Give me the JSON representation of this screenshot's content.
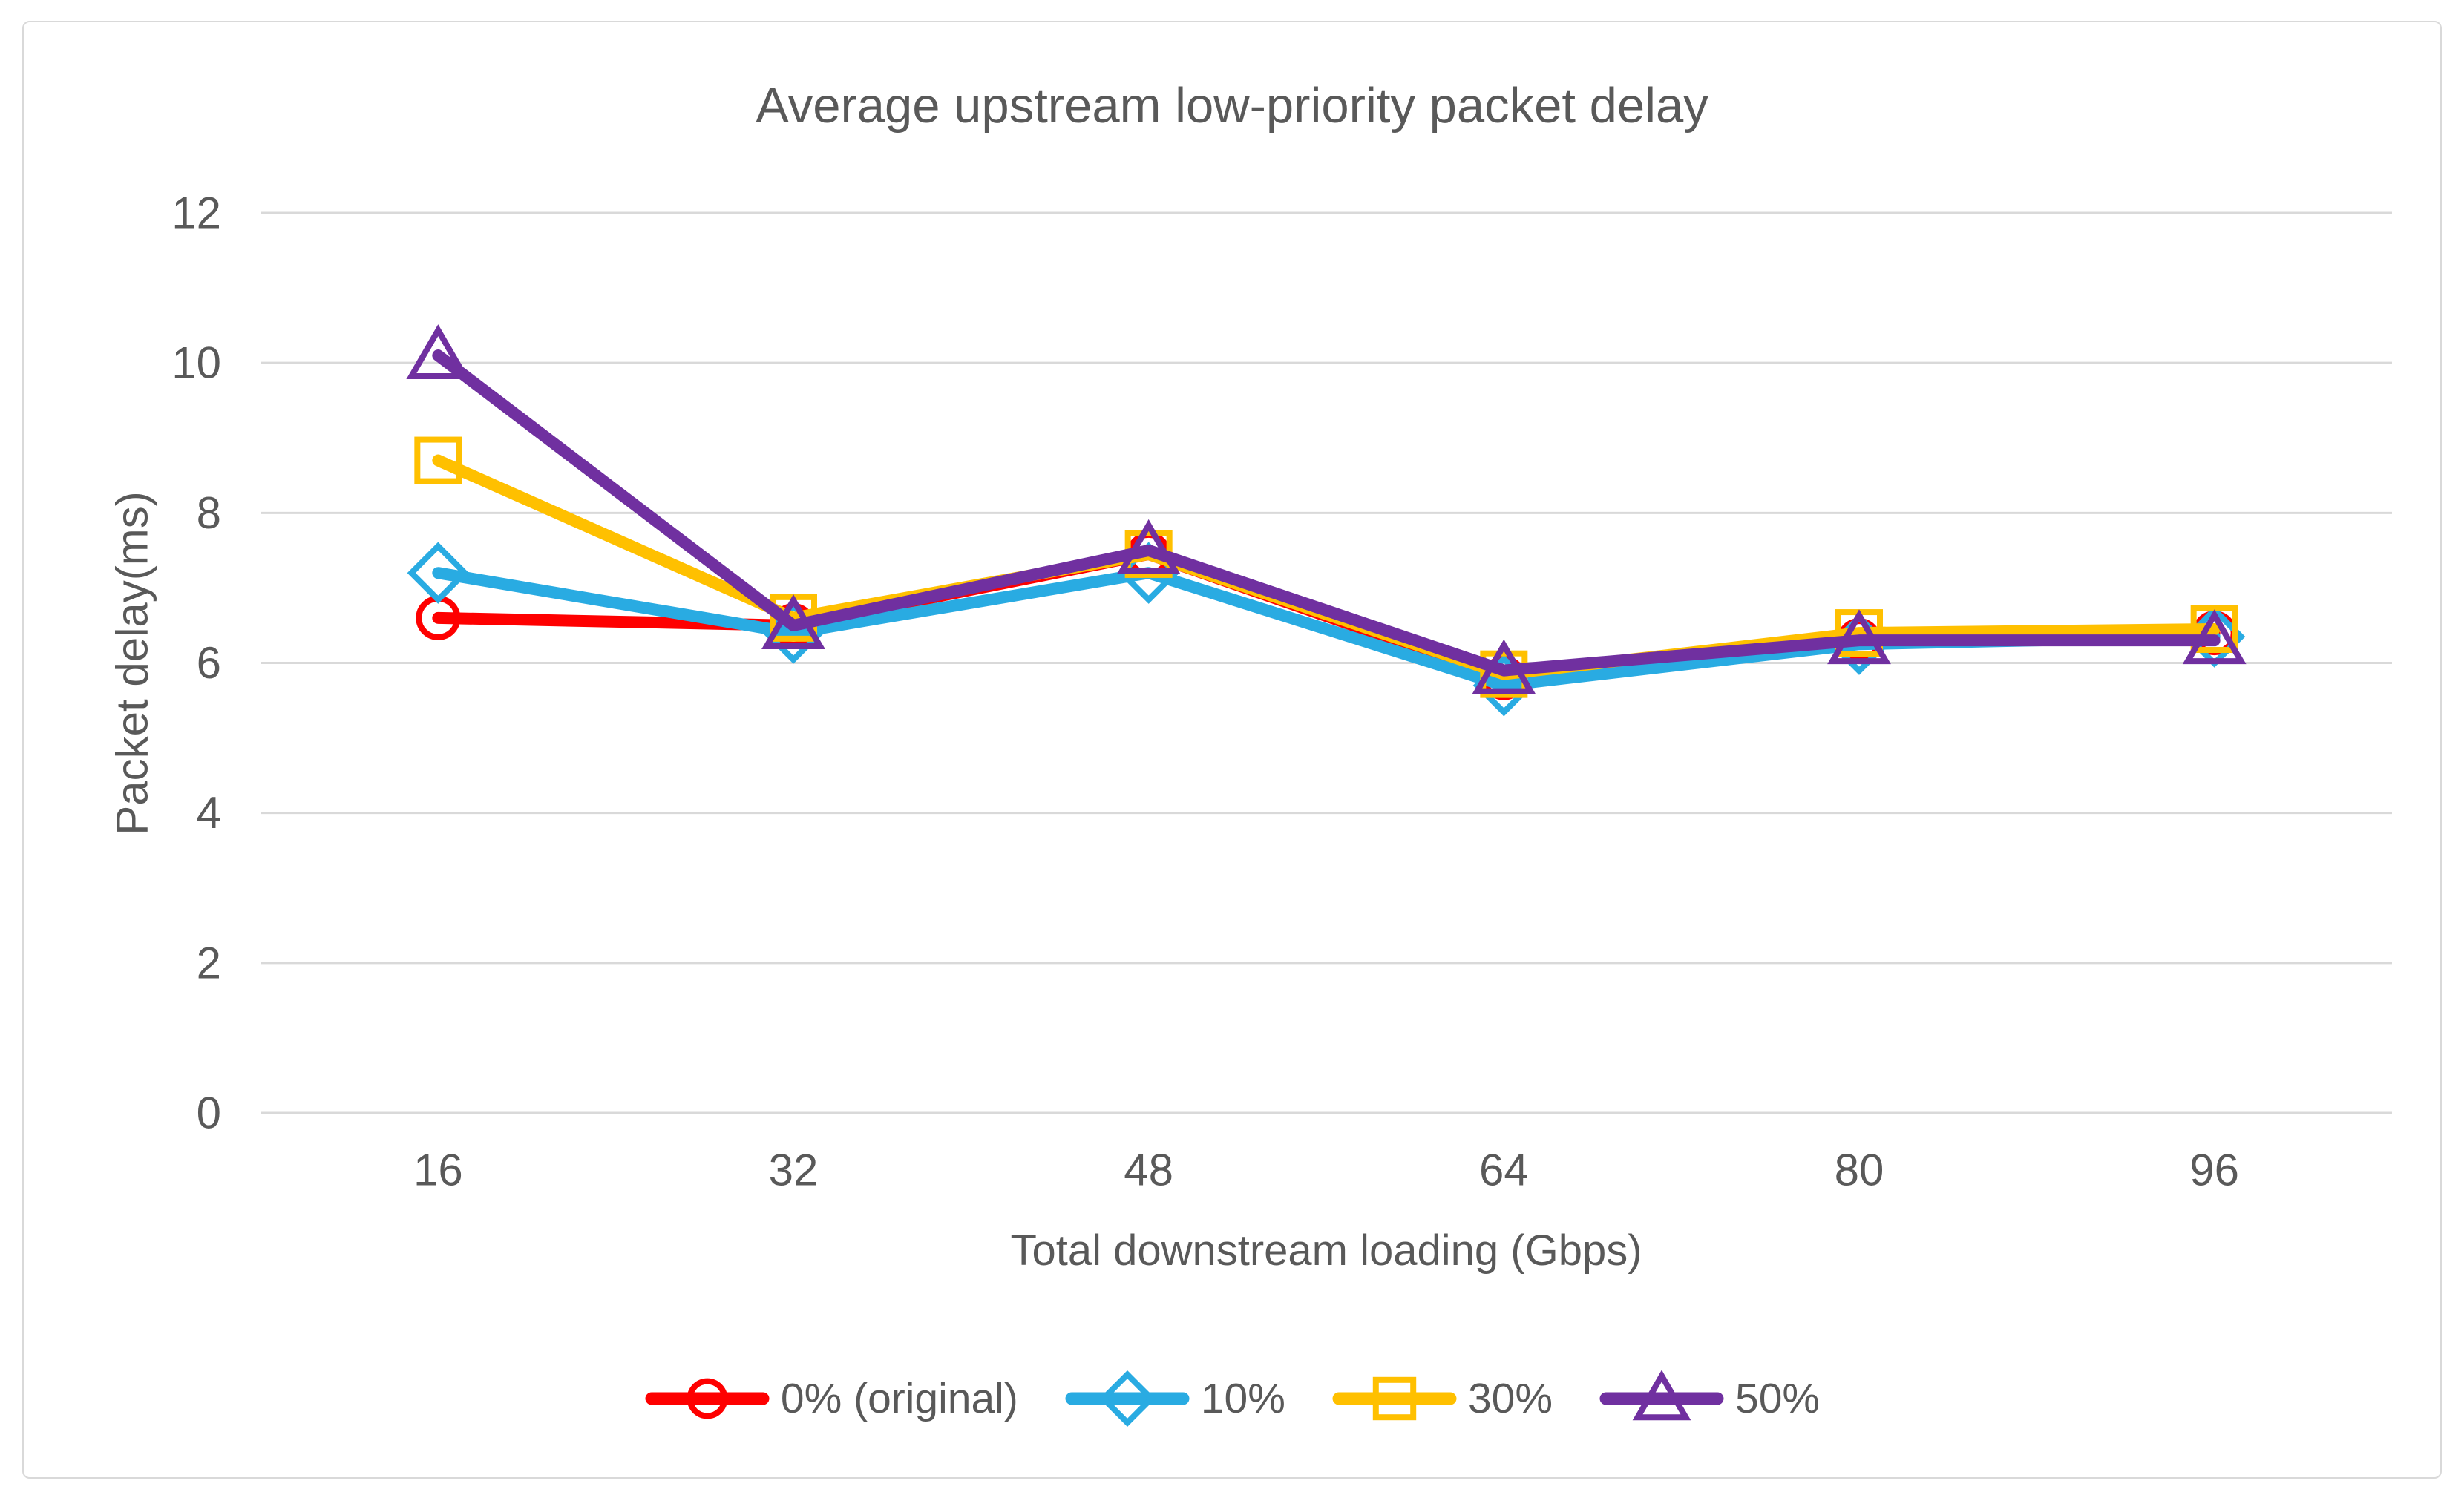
{
  "chart_data": {
    "type": "line",
    "title": "Average upstream low-priority packet delay",
    "xlabel": "Total downstream loading (Gbps)",
    "ylabel": "Packet delay(ms)",
    "x": [
      16,
      32,
      48,
      64,
      80,
      96
    ],
    "xticklabels": [
      "16",
      "32",
      "48",
      "64",
      "80",
      "96"
    ],
    "yticks": [
      0,
      2,
      4,
      6,
      8,
      10,
      12
    ],
    "yticklabels": [
      "0",
      "2",
      "4",
      "6",
      "8",
      "10",
      "12"
    ],
    "ylim": [
      0,
      12
    ],
    "grid": "horizontal",
    "legend_position": "bottom",
    "series": [
      {
        "name": "0% (original)",
        "color": "#FE0000",
        "marker": "circle",
        "values": [
          6.6,
          6.5,
          7.45,
          5.8,
          6.3,
          6.4
        ]
      },
      {
        "name": "10%",
        "color": "#29ABE2",
        "marker": "diamond",
        "values": [
          7.2,
          6.4,
          7.2,
          5.7,
          6.25,
          6.35
        ]
      },
      {
        "name": "30%",
        "color": "#FFC000",
        "marker": "square",
        "values": [
          8.7,
          6.6,
          7.45,
          5.85,
          6.4,
          6.45
        ]
      },
      {
        "name": "50%",
        "color": "#7030A0",
        "marker": "triangle",
        "values": [
          10.1,
          6.5,
          7.5,
          5.9,
          6.3,
          6.3
        ]
      }
    ],
    "colors": {
      "grid": "#D9D9D9",
      "axis_text": "#595959",
      "border": "#D9D9D9",
      "background": "#FFFFFF"
    }
  }
}
